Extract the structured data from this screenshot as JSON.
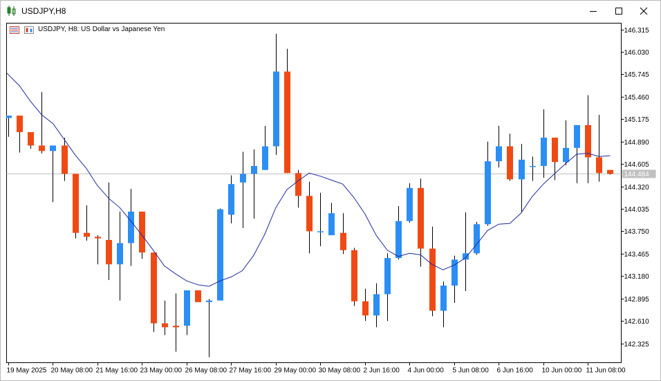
{
  "window": {
    "title": "USDJPY,H8",
    "controls": [
      "minimize",
      "maximize",
      "close"
    ]
  },
  "chart_header": {
    "symbol_timeframe": "USDJPY, H8:",
    "description": "US Dollar vs Japanese Yen"
  },
  "colors": {
    "bull": "#2b8ef5",
    "bear": "#f04a14",
    "wick": "#000000",
    "ma_line": "#1f2a9c",
    "price_line": "#c0c0c0",
    "price_label_bg": "#c0c0c0",
    "price_label_text": "#ffffff"
  },
  "chart_data": {
    "type": "candlestick",
    "symbol": "USDJPY",
    "timeframe": "H8",
    "ylim": [
      142.08,
      146.395
    ],
    "y_ticks": [
      "146.315",
      "146.030",
      "145.745",
      "145.460",
      "145.175",
      "144.890",
      "144.605",
      "144.320",
      "144.035",
      "143.750",
      "143.465",
      "143.180",
      "142.895",
      "142.610",
      "142.325"
    ],
    "x_labels": [
      {
        "label": "19 May 2025",
        "index": 0
      },
      {
        "label": "20 May 08:00",
        "index": 4
      },
      {
        "label": "21 May 16:00",
        "index": 8
      },
      {
        "label": "23 May 00:00",
        "index": 12
      },
      {
        "label": "26 May 08:00",
        "index": 16
      },
      {
        "label": "27 May 16:00",
        "index": 20
      },
      {
        "label": "29 May 00:00",
        "index": 24
      },
      {
        "label": "30 May 08:00",
        "index": 28
      },
      {
        "label": "2 Jun 16:00",
        "index": 32
      },
      {
        "label": "4 Jun 00:00",
        "index": 36
      },
      {
        "label": "5 Jun 08:00",
        "index": 40
      },
      {
        "label": "6 Jun 16:00",
        "index": 44
      },
      {
        "label": "10 Jun 00:00",
        "index": 48
      },
      {
        "label": "11 Jun 08:00",
        "index": 52
      }
    ],
    "current_price": "144.484",
    "ohlc": [
      {
        "o": 145.19,
        "h": 145.22,
        "l": 144.95,
        "c": 145.22
      },
      {
        "o": 145.22,
        "h": 145.22,
        "l": 144.75,
        "c": 145.01
      },
      {
        "o": 145.01,
        "h": 145.01,
        "l": 144.8,
        "c": 144.84
      },
      {
        "o": 144.84,
        "h": 145.52,
        "l": 144.74,
        "c": 144.77
      },
      {
        "o": 144.77,
        "h": 144.84,
        "l": 144.12,
        "c": 144.84
      },
      {
        "o": 144.84,
        "h": 144.94,
        "l": 144.39,
        "c": 144.48
      },
      {
        "o": 144.48,
        "h": 144.48,
        "l": 143.66,
        "c": 143.73
      },
      {
        "o": 143.73,
        "h": 144.08,
        "l": 143.63,
        "c": 143.68
      },
      {
        "o": 143.68,
        "h": 143.7,
        "l": 143.33,
        "c": 143.66
      },
      {
        "o": 143.64,
        "h": 144.37,
        "l": 143.13,
        "c": 143.33
      },
      {
        "o": 143.33,
        "h": 144.0,
        "l": 142.87,
        "c": 143.6
      },
      {
        "o": 143.6,
        "h": 144.29,
        "l": 143.31,
        "c": 144.0
      },
      {
        "o": 144.0,
        "h": 144.0,
        "l": 143.4,
        "c": 143.48
      },
      {
        "o": 143.48,
        "h": 143.48,
        "l": 142.47,
        "c": 142.58
      },
      {
        "o": 142.58,
        "h": 142.87,
        "l": 142.43,
        "c": 142.53
      },
      {
        "o": 142.55,
        "h": 142.96,
        "l": 142.22,
        "c": 142.53
      },
      {
        "o": 142.55,
        "h": 143.0,
        "l": 142.43,
        "c": 143.0
      },
      {
        "o": 143.0,
        "h": 143.0,
        "l": 142.86,
        "c": 142.85
      },
      {
        "o": 142.85,
        "h": 142.89,
        "l": 142.15,
        "c": 142.87
      },
      {
        "o": 142.87,
        "h": 144.04,
        "l": 142.87,
        "c": 144.03
      },
      {
        "o": 143.96,
        "h": 144.46,
        "l": 143.85,
        "c": 144.35
      },
      {
        "o": 144.37,
        "h": 144.76,
        "l": 143.79,
        "c": 144.48
      },
      {
        "o": 144.48,
        "h": 144.79,
        "l": 143.91,
        "c": 144.58
      },
      {
        "o": 144.53,
        "h": 145.09,
        "l": 144.53,
        "c": 144.83
      },
      {
        "o": 144.83,
        "h": 146.26,
        "l": 144.72,
        "c": 145.78
      },
      {
        "o": 145.78,
        "h": 146.07,
        "l": 144.49,
        "c": 144.49
      },
      {
        "o": 144.49,
        "h": 144.53,
        "l": 144.05,
        "c": 144.2
      },
      {
        "o": 144.2,
        "h": 144.38,
        "l": 143.47,
        "c": 143.75
      },
      {
        "o": 143.75,
        "h": 144.24,
        "l": 143.56,
        "c": 143.75
      },
      {
        "o": 143.7,
        "h": 144.11,
        "l": 143.7,
        "c": 143.98
      },
      {
        "o": 143.73,
        "h": 143.98,
        "l": 143.46,
        "c": 143.51
      },
      {
        "o": 143.51,
        "h": 143.54,
        "l": 142.8,
        "c": 142.86
      },
      {
        "o": 142.86,
        "h": 143.02,
        "l": 142.61,
        "c": 142.68
      },
      {
        "o": 142.68,
        "h": 143.09,
        "l": 142.53,
        "c": 142.95
      },
      {
        "o": 142.95,
        "h": 143.47,
        "l": 142.61,
        "c": 143.41
      },
      {
        "o": 143.41,
        "h": 144.07,
        "l": 143.39,
        "c": 143.88
      },
      {
        "o": 143.88,
        "h": 144.36,
        "l": 143.86,
        "c": 144.3
      },
      {
        "o": 144.3,
        "h": 144.42,
        "l": 143.3,
        "c": 143.53
      },
      {
        "o": 143.53,
        "h": 143.81,
        "l": 142.67,
        "c": 142.74
      },
      {
        "o": 142.74,
        "h": 143.11,
        "l": 142.53,
        "c": 143.06
      },
      {
        "o": 143.06,
        "h": 143.44,
        "l": 142.84,
        "c": 143.39
      },
      {
        "o": 143.39,
        "h": 143.99,
        "l": 142.99,
        "c": 143.47
      },
      {
        "o": 143.47,
        "h": 143.87,
        "l": 143.45,
        "c": 143.84
      },
      {
        "o": 143.84,
        "h": 144.89,
        "l": 143.82,
        "c": 144.64
      },
      {
        "o": 144.64,
        "h": 145.09,
        "l": 144.56,
        "c": 144.83
      },
      {
        "o": 144.83,
        "h": 144.99,
        "l": 144.39,
        "c": 144.41
      },
      {
        "o": 144.41,
        "h": 144.86,
        "l": 143.99,
        "c": 144.66
      },
      {
        "o": 144.58,
        "h": 144.7,
        "l": 144.39,
        "c": 144.58
      },
      {
        "o": 144.58,
        "h": 145.3,
        "l": 144.43,
        "c": 144.94
      },
      {
        "o": 144.94,
        "h": 144.94,
        "l": 144.4,
        "c": 144.63
      },
      {
        "o": 144.63,
        "h": 145.16,
        "l": 144.59,
        "c": 144.81
      },
      {
        "o": 144.81,
        "h": 145.1,
        "l": 144.36,
        "c": 145.1
      },
      {
        "o": 145.1,
        "h": 145.48,
        "l": 144.36,
        "c": 144.69
      },
      {
        "o": 144.69,
        "h": 145.23,
        "l": 144.38,
        "c": 144.49
      },
      {
        "o": 144.53,
        "h": 144.53,
        "l": 144.47,
        "c": 144.48
      }
    ],
    "ma_line": [
      145.76,
      145.6,
      145.4,
      145.23,
      145.12,
      144.92,
      144.72,
      144.55,
      144.33,
      144.17,
      144.05,
      143.88,
      143.7,
      143.51,
      143.31,
      143.21,
      143.12,
      143.07,
      143.05,
      143.12,
      143.17,
      143.25,
      143.44,
      143.71,
      144.05,
      144.28,
      144.39,
      144.49,
      144.45,
      144.4,
      144.35,
      144.18,
      143.97,
      143.7,
      143.51,
      143.43,
      143.47,
      143.45,
      143.33,
      143.26,
      143.32,
      143.41,
      143.58,
      143.76,
      143.84,
      143.85,
      143.98,
      144.19,
      144.35,
      144.48,
      144.61,
      144.73,
      144.74,
      144.7,
      144.71
    ]
  }
}
